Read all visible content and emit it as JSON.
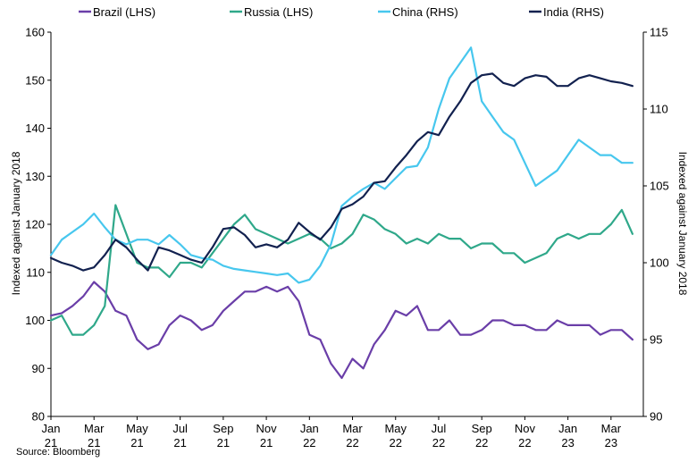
{
  "chart_data": {
    "type": "line",
    "legend_position": "top",
    "grid": false,
    "source": "Source: Bloomberg",
    "ylabel_left": "Indexed against January 2018",
    "ylabel_right": "Indexed against January 2018",
    "ylim_left": [
      80,
      160
    ],
    "ylim_right": [
      90,
      115
    ],
    "yticks_left": [
      "80",
      "90",
      "100",
      "110",
      "120",
      "130",
      "140",
      "150",
      "160"
    ],
    "yticks_right": [
      "90",
      "95",
      "100",
      "105",
      "110",
      "115"
    ],
    "xticks": [
      {
        "month": "Jan",
        "year": "21"
      },
      {
        "month": "Mar",
        "year": "21"
      },
      {
        "month": "May",
        "year": "21"
      },
      {
        "month": "Jul",
        "year": "21"
      },
      {
        "month": "Sep",
        "year": "21"
      },
      {
        "month": "Nov",
        "year": "21"
      },
      {
        "month": "Jan",
        "year": "22"
      },
      {
        "month": "Mar",
        "year": "22"
      },
      {
        "month": "May",
        "year": "22"
      },
      {
        "month": "Jul",
        "year": "22"
      },
      {
        "month": "Sep",
        "year": "22"
      },
      {
        "month": "Nov",
        "year": "22"
      },
      {
        "month": "Jan",
        "year": "23"
      },
      {
        "month": "Mar",
        "year": "23"
      }
    ],
    "x_months": [
      0,
      0.5,
      1,
      1.5,
      2,
      2.5,
      3,
      3.5,
      4,
      4.5,
      5,
      5.5,
      6,
      6.5,
      7,
      7.5,
      8,
      8.5,
      9,
      9.5,
      10,
      10.5,
      11,
      11.5,
      12,
      12.5,
      13,
      13.5,
      14,
      14.5,
      15,
      15.5,
      16,
      16.5,
      17,
      17.5,
      18,
      18.5,
      19,
      19.5,
      20,
      20.5,
      21,
      21.5,
      22,
      22.5,
      23,
      23.5,
      24,
      24.5,
      25,
      25.5,
      26,
      26.5,
      27
    ],
    "series": [
      {
        "name": "Brazil (LHS)",
        "axis": "left",
        "color": "#6a3ea8",
        "values": [
          101,
          101.5,
          103,
          105,
          108,
          106,
          102,
          101,
          96,
          94,
          95,
          99,
          101,
          100,
          98,
          99,
          102,
          104,
          106,
          106,
          107,
          106,
          107,
          104,
          97,
          96,
          91,
          88,
          92,
          90,
          95,
          98,
          102,
          101,
          103,
          98,
          98,
          100,
          97,
          97,
          98,
          100,
          100,
          99,
          99,
          98,
          98,
          100,
          99,
          99,
          99,
          97,
          98,
          98,
          96
        ]
      },
      {
        "name": "Russia (LHS)",
        "axis": "left",
        "color": "#2fa88a",
        "values": [
          100,
          101,
          97,
          97,
          99,
          103,
          124,
          118,
          112,
          111,
          111,
          109,
          112,
          112,
          111,
          114,
          117,
          120,
          122,
          119,
          118,
          117,
          116,
          117,
          118,
          117,
          115,
          116,
          118,
          122,
          121,
          119,
          118,
          116,
          117,
          116,
          118,
          117,
          117,
          115,
          116,
          116,
          114,
          114,
          112,
          113,
          114,
          117,
          118,
          117,
          118,
          118,
          120,
          123,
          118
        ]
      },
      {
        "name": "China (RHS)",
        "axis": "right",
        "color": "#47c7ee",
        "values": [
          100.5,
          101.5,
          102,
          102.5,
          103.2,
          102.3,
          101.5,
          101.2,
          101.5,
          101.5,
          101.2,
          101.8,
          101.2,
          100.5,
          100.3,
          100.2,
          99.8,
          99.6,
          99.5,
          99.4,
          99.3,
          99.2,
          99.3,
          98.7,
          98.9,
          99.8,
          101.2,
          103.7,
          104.3,
          104.8,
          105.2,
          104.8,
          105.5,
          106.2,
          106.3,
          107.5,
          110.0,
          112.0,
          113.0,
          114.0,
          110.5,
          109.5,
          108.5,
          108.0,
          106.5,
          105.0,
          105.5,
          106.0,
          107.0,
          108.0,
          107.5,
          107.0,
          107.0,
          106.5,
          106.5
        ]
      },
      {
        "name": "India (RHS)",
        "axis": "right",
        "color": "#12214f",
        "values": [
          100.3,
          100.0,
          99.8,
          99.5,
          99.7,
          100.5,
          101.5,
          101.0,
          100.2,
          99.5,
          101.0,
          100.8,
          100.5,
          100.2,
          100.0,
          101.0,
          102.2,
          102.3,
          101.8,
          101.0,
          101.2,
          101.0,
          101.5,
          102.6,
          102.0,
          101.5,
          102.3,
          103.5,
          103.8,
          104.3,
          105.2,
          105.3,
          106.2,
          107.0,
          107.9,
          108.5,
          108.3,
          109.5,
          110.5,
          111.7,
          112.2,
          112.3,
          111.7,
          111.5,
          112.0,
          112.2,
          112.1,
          111.5,
          111.5,
          112.0,
          112.2,
          112.0,
          111.8,
          111.7,
          111.5
        ]
      }
    ]
  }
}
